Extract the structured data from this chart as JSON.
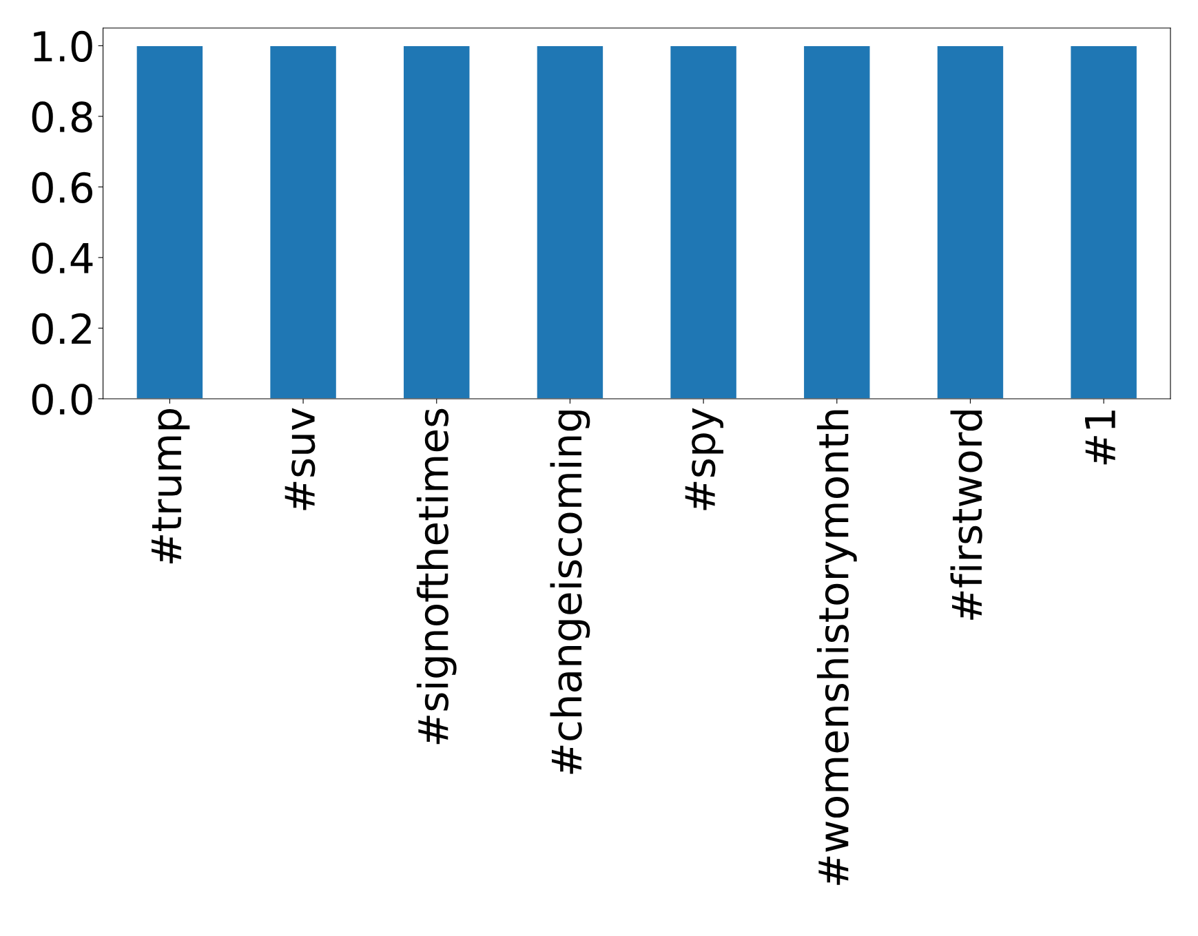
{
  "chart_data": {
    "type": "bar",
    "categories": [
      "#trump",
      "#suv",
      "#signofthetimes",
      "#changeiscoming",
      "#spy",
      "#womenshistorymonth",
      "#firstword",
      "#1"
    ],
    "values": [
      1,
      1,
      1,
      1,
      1,
      1,
      1,
      1
    ],
    "color": "#1f77b4",
    "ylim": [
      0,
      1.05
    ],
    "yticks": [
      {
        "value": 0,
        "label": "0.0"
      },
      {
        "value": 0.2,
        "label": "0.2"
      },
      {
        "value": 0.4,
        "label": "0.4"
      },
      {
        "value": 0.6,
        "label": "0.6"
      },
      {
        "value": 0.8,
        "label": "0.8"
      },
      {
        "value": 1,
        "label": "1.0"
      }
    ],
    "grid": false
  }
}
